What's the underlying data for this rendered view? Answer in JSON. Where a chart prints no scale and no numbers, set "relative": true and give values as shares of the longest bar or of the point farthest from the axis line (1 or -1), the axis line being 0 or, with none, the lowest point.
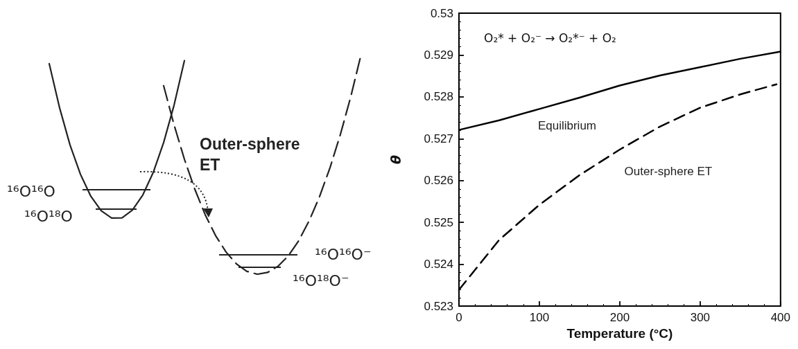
{
  "chart_data": [
    {
      "type": "line",
      "relative": true,
      "marker": "none",
      "categories": [
        null,
        null,
        null,
        null,
        null,
        null,
        null,
        null,
        null,
        null,
        null,
        null,
        null,
        null,
        null,
        null,
        null,
        null,
        null,
        null,
        null,
        null,
        null,
        null,
        null,
        null,
        null,
        null,
        null,
        null,
        null
      ],
      "series": [
        {
          "color": "#222222",
          "line_style": "solid",
          "values": [
            0.956,
            0.755,
            0.587,
            0.454,
            0.354,
            0.288,
            0.255,
            0.256,
            0.291,
            0.36,
            0.462,
            0.598,
            0.767,
            0.97,
            null,
            null,
            null,
            null,
            null,
            null,
            null,
            null,
            null,
            null,
            null,
            null,
            null,
            null,
            null,
            null,
            null
          ]
        },
        {
          "color": "#222222",
          "line_style": "dashed",
          "values": [
            null,
            null,
            null,
            null,
            null,
            null,
            null,
            null,
            null,
            null,
            null,
            0.856,
            0.679,
            0.522,
            0.386,
            0.27,
            0.175,
            0.101,
            0.047,
            0.013,
            0,
            0.008,
            0.036,
            0.084,
            0.153,
            0.243,
            0.353,
            0.484,
            0.635,
            0.807,
            1
          ]
        }
      ],
      "annotations": [
        "¹⁶O¹⁶O",
        "¹⁶O¹⁸O",
        "Outer-sphere ET",
        "¹⁶O¹⁶O⁻",
        "¹⁶O¹⁸O⁻"
      ]
    },
    {
      "type": "line",
      "xlabel": "Temperature (°C)",
      "ylabel": "θ",
      "x": [
        0,
        50,
        100,
        150,
        200,
        250,
        300,
        350,
        400
      ],
      "xlim": [
        0,
        400
      ],
      "xticks": [
        0,
        100,
        200,
        300,
        400
      ],
      "ylim": [
        0.523,
        0.53
      ],
      "yticks": [
        0.523,
        0.524,
        0.525,
        0.526,
        0.527,
        0.528,
        0.529,
        0.53
      ],
      "grid": false,
      "marker": "none",
      "series": [
        {
          "name": "Equilibrium",
          "color": "#000000",
          "line_style": "solid",
          "values": [
            0.52721,
            0.52744,
            0.52771,
            0.52798,
            0.52827,
            0.52851,
            0.52871,
            0.52891,
            0.52908
          ]
        },
        {
          "name": "Outer-sphere ET",
          "color": "#000000",
          "line_style": "dashed",
          "x": [
            0,
            50,
            100,
            150,
            200,
            250,
            300,
            350,
            395
          ],
          "values": [
            0.52339,
            0.52458,
            0.52542,
            0.52613,
            0.52674,
            0.52729,
            0.52774,
            0.52806,
            0.5283
          ]
        }
      ],
      "annotations": [
        "O₂* + O₂⁻ → O₂*⁻ + O₂"
      ]
    }
  ]
}
